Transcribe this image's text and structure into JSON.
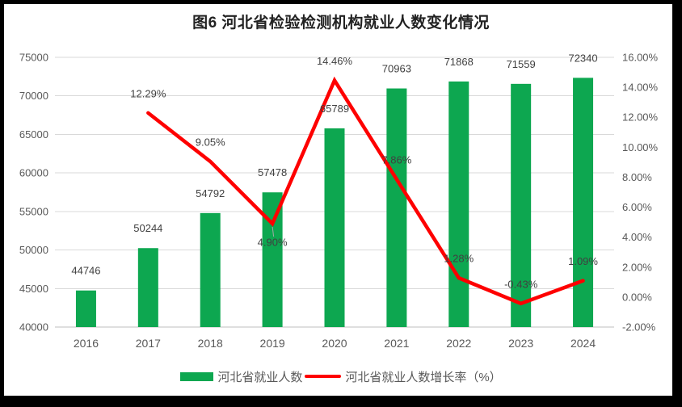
{
  "chart_data": {
    "type": "combo-bar-line",
    "title": "图6 河北省检验检测机构就业人数变化情况",
    "categories": [
      "2016",
      "2017",
      "2018",
      "2019",
      "2020",
      "2021",
      "2022",
      "2023",
      "2024"
    ],
    "series": [
      {
        "name": "河北省就业人数",
        "type": "bar",
        "axis": "left",
        "color": "#0DA750",
        "values": [
          44746,
          50244,
          54792,
          57478,
          65789,
          70963,
          71868,
          71559,
          72340
        ],
        "data_labels": [
          "44746",
          "50244",
          "54792",
          "57478",
          "65789",
          "70963",
          "71868",
          "71559",
          "72340"
        ]
      },
      {
        "name": "河北省就业人数增长率（%）",
        "type": "line",
        "axis": "right",
        "color": "#FE0000",
        "start_index": 1,
        "values": [
          12.29,
          9.05,
          4.9,
          14.46,
          7.86,
          1.28,
          -0.43,
          1.09
        ],
        "data_labels": [
          "12.29%",
          "9.05%",
          "4.90%",
          "14.46%",
          "7.86%",
          "1.28%",
          "-0.43%",
          "1.09%"
        ],
        "label_positions": [
          "above",
          "above",
          "below-leader",
          "above",
          "above",
          "above",
          "above",
          "above"
        ]
      }
    ],
    "left_axis": {
      "min": 40000,
      "max": 75000,
      "step": 5000,
      "tick_values": [
        40000,
        45000,
        50000,
        55000,
        60000,
        65000,
        70000,
        75000
      ],
      "tick_labels": [
        "40000",
        "45000",
        "50000",
        "55000",
        "60000",
        "65000",
        "70000",
        "75000"
      ]
    },
    "right_axis": {
      "min": -2,
      "max": 16,
      "step": 2,
      "tick_values": [
        -2,
        0,
        2,
        4,
        6,
        8,
        10,
        12,
        14,
        16
      ],
      "tick_labels": [
        "-2.00%",
        "0.00%",
        "2.00%",
        "4.00%",
        "6.00%",
        "8.00%",
        "10.00%",
        "12.00%",
        "14.00%",
        "16.00%"
      ]
    },
    "legend": [
      {
        "label": "河北省就业人数",
        "swatch": "bar"
      },
      {
        "label": "河北省就业人数增长率（%）",
        "swatch": "line"
      }
    ],
    "grid": "horizontal",
    "legend_position": "bottom",
    "colors": {
      "bar": "#0DA750",
      "line": "#FE0000",
      "gridline": "#D9D9D9",
      "axis_line": "#BFBFBF",
      "tick_text": "#595959",
      "data_label_text": "#404040",
      "leader_line": "#A6A6A6"
    }
  }
}
